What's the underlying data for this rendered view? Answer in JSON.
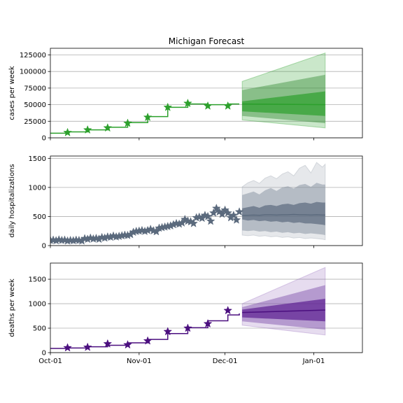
{
  "chart_data": {
    "title": "Michigan Forecast",
    "x_tick_labels": [
      "Oct-01",
      "Nov-01",
      "Dec-01",
      "Jan-01"
    ],
    "x_tick_days": [
      0,
      31,
      61,
      92
    ],
    "x_range_days": [
      0,
      109
    ],
    "x_axis_start": "2020-10-01",
    "grid": "horizontal",
    "panels": [
      {
        "id": "cases",
        "type": "line",
        "ylabel": "cases per week",
        "ylim": [
          0,
          135000
        ],
        "yticks": [
          0,
          25000,
          50000,
          75000,
          100000,
          125000
        ],
        "colors": {
          "line": "#2ca02c",
          "marker": "#2ca02c",
          "band_inner": "#2ca02c",
          "band_mid": "#3a8f3a",
          "band_outer": "#2ca02c"
        },
        "fit_x": [
          0,
          6,
          13,
          20,
          27,
          34,
          41,
          48,
          55,
          62,
          66
        ],
        "fit_y": [
          7000,
          9000,
          12000,
          16000,
          23000,
          32000,
          46000,
          51000,
          50000,
          51000,
          51000
        ],
        "observed": [
          {
            "x": 6,
            "y": 8000
          },
          {
            "x": 13,
            "y": 12000
          },
          {
            "x": 20,
            "y": 15000
          },
          {
            "x": 27,
            "y": 22000
          },
          {
            "x": 34,
            "y": 31000
          },
          {
            "x": 41,
            "y": 46000
          },
          {
            "x": 48,
            "y": 52000
          },
          {
            "x": 55,
            "y": 48000
          },
          {
            "x": 62,
            "y": 48000
          }
        ],
        "forecast_x": [
          67,
          96
        ],
        "median": [
          51000,
          50000
        ],
        "band_50": {
          "lo": [
            40000,
            33000
          ],
          "hi": [
            55000,
            70000
          ]
        },
        "band_80": {
          "lo": [
            33000,
            22000
          ],
          "hi": [
            72000,
            95000
          ]
        },
        "band_95": {
          "lo": [
            27000,
            15000
          ],
          "hi": [
            85000,
            128000
          ]
        }
      },
      {
        "id": "hospitalizations",
        "type": "line",
        "ylabel": "daily hospitalizations",
        "ylim": [
          0,
          1540
        ],
        "yticks": [
          0,
          500,
          1000,
          1500
        ],
        "colors": {
          "line": "#5b6a7d",
          "marker": "#5b6a7d",
          "band_inner": "#5b6a7d",
          "band_mid": "#7a8796",
          "band_outer": "#9aa4af"
        },
        "observed_daily": [
          90,
          95,
          85,
          100,
          90,
          95,
          80,
          90,
          85,
          95,
          90,
          80,
          120,
          110,
          130,
          115,
          125,
          110,
          140,
          130,
          150,
          145,
          165,
          150,
          160,
          170,
          180,
          175,
          190,
          230,
          245,
          250,
          260,
          245,
          260,
          280,
          255,
          240,
          300,
          310,
          320,
          330,
          340,
          360,
          380,
          370,
          390,
          450,
          420,
          410,
          380,
          480,
          490,
          470,
          520,
          500,
          420,
          560,
          640,
          580,
          540,
          610,
          560,
          480,
          520,
          440,
          580
        ],
        "forecast_x": [
          67,
          69,
          71,
          73,
          75,
          77,
          79,
          81,
          83,
          85,
          87,
          89,
          91,
          93,
          95,
          96
        ],
        "median": [
          520,
          520,
          525,
          520,
          530,
          530,
          525,
          530,
          530,
          535,
          530,
          530,
          525,
          530,
          525,
          525
        ],
        "band_50": {
          "lo": [
            450,
            430,
            440,
            420,
            430,
            410,
            420,
            400,
            410,
            390,
            400,
            380,
            380,
            370,
            360,
            350
          ],
          "hi": [
            640,
            660,
            680,
            650,
            690,
            700,
            680,
            710,
            720,
            700,
            730,
            740,
            720,
            750,
            740,
            740
          ]
        },
        "band_80": {
          "lo": [
            260,
            250,
            260,
            240,
            250,
            230,
            240,
            220,
            230,
            210,
            220,
            200,
            210,
            200,
            190,
            180
          ],
          "hi": [
            870,
            900,
            930,
            880,
            950,
            990,
            940,
            1000,
            1020,
            980,
            1040,
            1060,
            1010,
            1080,
            1050,
            1050
          ]
        },
        "band_95": {
          "lo": [
            180,
            170,
            180,
            160,
            170,
            150,
            160,
            140,
            150,
            130,
            140,
            120,
            130,
            120,
            110,
            100
          ],
          "hi": [
            1010,
            1080,
            1120,
            1070,
            1160,
            1200,
            1150,
            1230,
            1270,
            1200,
            1330,
            1380,
            1250,
            1430,
            1350,
            1400
          ]
        }
      },
      {
        "id": "deaths",
        "type": "line",
        "ylabel": "deaths per week",
        "ylim": [
          0,
          1830
        ],
        "yticks": [
          0,
          500,
          1000,
          1500
        ],
        "colors": {
          "line": "#4b0f7f",
          "marker": "#4b0f7f",
          "band_inner": "#5d1f91",
          "band_mid": "#7a4aa8",
          "band_outer": "#9b72c0"
        },
        "fit_x": [
          0,
          6,
          13,
          20,
          27,
          34,
          41,
          48,
          55,
          62,
          66
        ],
        "fit_y": [
          85,
          95,
          120,
          150,
          200,
          270,
          390,
          510,
          650,
          770,
          800
        ],
        "observed": [
          {
            "x": 6,
            "y": 100
          },
          {
            "x": 13,
            "y": 110
          },
          {
            "x": 20,
            "y": 180
          },
          {
            "x": 27,
            "y": 160
          },
          {
            "x": 34,
            "y": 240
          },
          {
            "x": 41,
            "y": 430
          },
          {
            "x": 48,
            "y": 500
          },
          {
            "x": 55,
            "y": 590
          },
          {
            "x": 62,
            "y": 860
          }
        ],
        "forecast_x": [
          67,
          96
        ],
        "median": [
          820,
          870
        ],
        "band_50": {
          "lo": [
            720,
            640
          ],
          "hi": [
            880,
            1100
          ]
        },
        "band_80": {
          "lo": [
            640,
            470
          ],
          "hi": [
            930,
            1380
          ]
        },
        "band_95": {
          "lo": [
            560,
            360
          ],
          "hi": [
            1000,
            1740
          ]
        }
      }
    ]
  }
}
